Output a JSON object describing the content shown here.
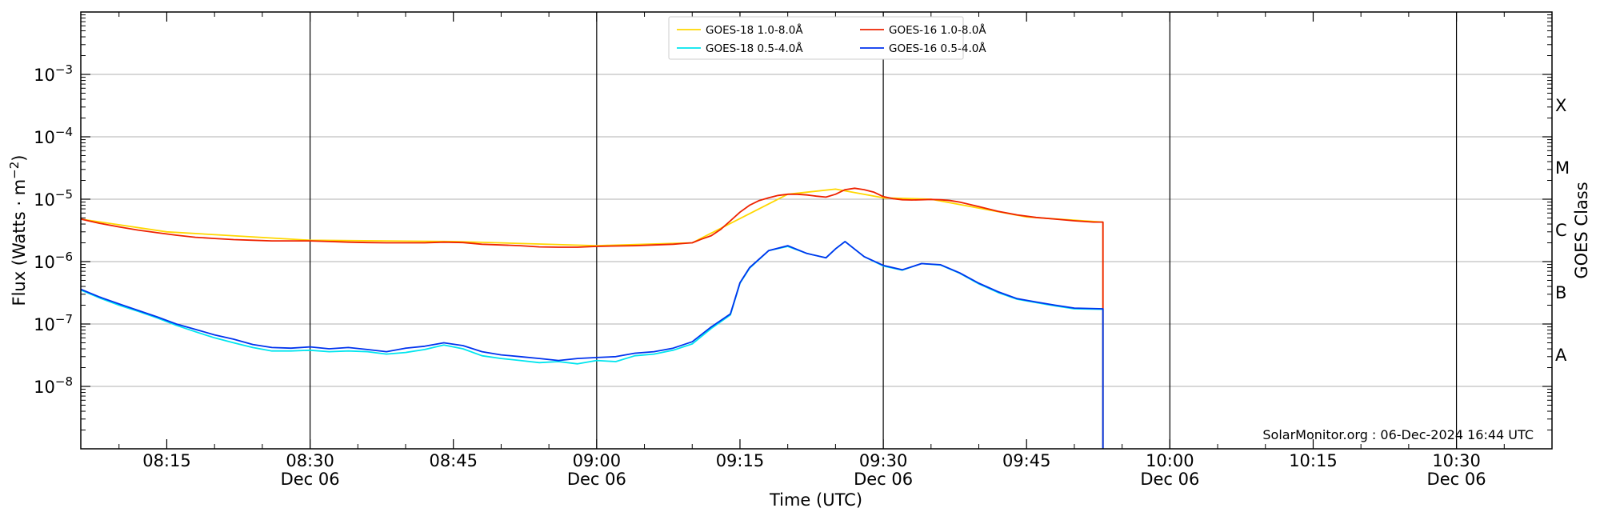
{
  "chart_data": {
    "type": "line",
    "xlabel": "Time (UTC)",
    "ylabel_text": "Flux (Watts · m",
    "ylabel_sup": "−2",
    "ylabel_close": ")",
    "right_label": "GOES Class",
    "credit": "SolarMonitor.org : 06-Dec-2024 16:44 UTC",
    "y_scale": "log",
    "ylim": [
      1e-09,
      0.01
    ],
    "xlim": [
      "08:06",
      "10:40"
    ],
    "grid": "horizontal at y decades",
    "legend_placement": "top-center",
    "y_ticks": [
      {
        "value": 1e-08,
        "base": "10",
        "exp": "−8"
      },
      {
        "value": 1e-07,
        "base": "10",
        "exp": "−7"
      },
      {
        "value": 1e-06,
        "base": "10",
        "exp": "−6"
      },
      {
        "value": 1e-05,
        "base": "10",
        "exp": "−5"
      },
      {
        "value": 0.0001,
        "base": "10",
        "exp": "−4"
      },
      {
        "value": 0.001,
        "base": "10",
        "exp": "−3"
      }
    ],
    "x_ticks": [
      {
        "time": "08:15",
        "label": "08:15",
        "sub": ""
      },
      {
        "time": "08:30",
        "label": "08:30",
        "sub": "Dec 06"
      },
      {
        "time": "08:45",
        "label": "08:45",
        "sub": ""
      },
      {
        "time": "09:00",
        "label": "09:00",
        "sub": "Dec 06"
      },
      {
        "time": "09:15",
        "label": "09:15",
        "sub": ""
      },
      {
        "time": "09:30",
        "label": "09:30",
        "sub": "Dec 06"
      },
      {
        "time": "09:45",
        "label": "09:45",
        "sub": ""
      },
      {
        "time": "10:00",
        "label": "10:00",
        "sub": "Dec 06"
      },
      {
        "time": "10:15",
        "label": "10:15",
        "sub": ""
      },
      {
        "time": "10:30",
        "label": "10:30",
        "sub": "Dec 06"
      }
    ],
    "vertical_markers": [
      "08:30",
      "09:00",
      "09:30",
      "10:00",
      "10:30"
    ],
    "goes_classes": [
      {
        "label": "A",
        "value": 1e-08
      },
      {
        "label": "B",
        "value": 1e-07
      },
      {
        "label": "C",
        "value": 1e-06
      },
      {
        "label": "M",
        "value": 1e-05
      },
      {
        "label": "X",
        "value": 0.0001
      }
    ],
    "series": [
      {
        "name": "GOES-18 1.0-8.0Å",
        "color": "#ffd700",
        "x": [
          "08:06",
          "08:15",
          "08:30",
          "08:45",
          "09:00",
          "09:10",
          "09:20",
          "09:25",
          "09:30",
          "09:35",
          "09:45",
          "09:53"
        ],
        "values": [
          4.8e-06,
          3e-06,
          2.2e-06,
          2.1e-06,
          1.8e-06,
          2e-06,
          1.2e-05,
          1.45e-05,
          1.05e-05,
          1e-05,
          5.2e-06,
          4.3e-06
        ]
      },
      {
        "name": "GOES-18 0.5-4.0Å",
        "color": "#00e5ee",
        "x": [
          "08:06",
          "08:08",
          "08:10",
          "08:12",
          "08:14",
          "08:16",
          "08:18",
          "08:20",
          "08:22",
          "08:24",
          "08:26",
          "08:28",
          "08:30",
          "08:32",
          "08:34",
          "08:36",
          "08:38",
          "08:40",
          "08:42",
          "08:44",
          "08:46",
          "08:48",
          "08:50",
          "08:52",
          "08:54",
          "08:56",
          "08:58",
          "09:00",
          "09:02",
          "09:04",
          "09:06",
          "09:08",
          "09:10",
          "09:12",
          "09:14",
          "09:15",
          "09:16",
          "09:18",
          "09:20",
          "09:22",
          "09:24",
          "09:25",
          "09:26",
          "09:28",
          "09:30",
          "09:32",
          "09:34",
          "09:36",
          "09:38",
          "09:40",
          "09:42",
          "09:44",
          "09:46",
          "09:48",
          "09:50",
          "09:53"
        ],
        "values": [
          3.5e-07,
          2.6e-07,
          2e-07,
          1.6e-07,
          1.25e-07,
          9.5e-08,
          7.5e-08,
          6e-08,
          5e-08,
          4.2e-08,
          3.7e-08,
          3.7e-08,
          3.8e-08,
          3.6e-08,
          3.7e-08,
          3.6e-08,
          3.3e-08,
          3.5e-08,
          3.9e-08,
          4.6e-08,
          4e-08,
          3.1e-08,
          2.8e-08,
          2.6e-08,
          2.4e-08,
          2.5e-08,
          2.3e-08,
          2.6e-08,
          2.5e-08,
          3.1e-08,
          3.3e-08,
          3.8e-08,
          4.8e-08,
          8.5e-08,
          1.4e-07,
          4.5e-07,
          7.8e-07,
          1.5e-06,
          1.75e-06,
          1.35e-06,
          1.15e-06,
          1.6e-06,
          2.1e-06,
          1.2e-06,
          8.5e-07,
          7.3e-07,
          9.3e-07,
          8.8e-07,
          6.5e-07,
          4.4e-07,
          3.2e-07,
          2.5e-07,
          2.2e-07,
          1.95e-07,
          1.75e-07,
          1.72e-07
        ]
      },
      {
        "name": "GOES-16 1.0-8.0Å",
        "color": "#ee2200",
        "x": [
          "08:06",
          "08:08",
          "08:10",
          "08:12",
          "08:14",
          "08:16",
          "08:18",
          "08:20",
          "08:22",
          "08:24",
          "08:26",
          "08:28",
          "08:30",
          "08:32",
          "08:34",
          "08:36",
          "08:38",
          "08:40",
          "08:42",
          "08:44",
          "08:46",
          "08:48",
          "08:50",
          "08:52",
          "08:54",
          "08:56",
          "08:58",
          "09:00",
          "09:02",
          "09:04",
          "09:06",
          "09:08",
          "09:09",
          "09:10",
          "09:11",
          "09:12",
          "09:13",
          "09:14",
          "09:15",
          "09:16",
          "09:17",
          "09:18",
          "09:19",
          "09:20",
          "09:21",
          "09:22",
          "09:23",
          "09:24",
          "09:25",
          "09:26",
          "09:27",
          "09:28",
          "09:29",
          "09:30",
          "09:31",
          "09:32",
          "09:33",
          "09:34",
          "09:35",
          "09:36",
          "09:37",
          "09:38",
          "09:40",
          "09:42",
          "09:44",
          "09:46",
          "09:48",
          "09:50",
          "09:52",
          "09:53"
        ],
        "values": [
          4.8e-06,
          4.1e-06,
          3.6e-06,
          3.2e-06,
          2.9e-06,
          2.65e-06,
          2.45e-06,
          2.35e-06,
          2.25e-06,
          2.2e-06,
          2.15e-06,
          2.15e-06,
          2.15e-06,
          2.1e-06,
          2.05e-06,
          2.02e-06,
          2e-06,
          2e-06,
          2e-06,
          2.05e-06,
          2.02e-06,
          1.9e-06,
          1.85e-06,
          1.8e-06,
          1.72e-06,
          1.7e-06,
          1.7e-06,
          1.75e-06,
          1.78e-06,
          1.8e-06,
          1.85e-06,
          1.9e-06,
          1.95e-06,
          2e-06,
          2.3e-06,
          2.6e-06,
          3.3e-06,
          4.5e-06,
          6.2e-06,
          8e-06,
          9.5e-06,
          1.05e-05,
          1.15e-05,
          1.2e-05,
          1.2e-05,
          1.17e-05,
          1.12e-05,
          1.08e-05,
          1.2e-05,
          1.42e-05,
          1.5e-05,
          1.42e-05,
          1.3e-05,
          1.1e-05,
          1.02e-05,
          9.8e-06,
          9.7e-06,
          9.8e-06,
          9.9e-06,
          9.8e-06,
          9.5e-06,
          9e-06,
          7.6e-06,
          6.4e-06,
          5.6e-06,
          5.1e-06,
          4.8e-06,
          4.5e-06,
          4.3e-06,
          4.3e-06
        ]
      },
      {
        "name": "GOES-16 0.5-4.0Å",
        "color": "#0033ee",
        "x": [
          "08:06",
          "08:08",
          "08:10",
          "08:12",
          "08:14",
          "08:16",
          "08:18",
          "08:20",
          "08:22",
          "08:24",
          "08:26",
          "08:28",
          "08:30",
          "08:32",
          "08:34",
          "08:36",
          "08:38",
          "08:40",
          "08:42",
          "08:44",
          "08:46",
          "08:48",
          "08:50",
          "08:52",
          "08:54",
          "08:56",
          "08:58",
          "09:00",
          "09:02",
          "09:04",
          "09:06",
          "09:08",
          "09:10",
          "09:12",
          "09:14",
          "09:15",
          "09:16",
          "09:18",
          "09:20",
          "09:22",
          "09:24",
          "09:25",
          "09:26",
          "09:28",
          "09:30",
          "09:32",
          "09:34",
          "09:36",
          "09:38",
          "09:40",
          "09:42",
          "09:44",
          "09:46",
          "09:48",
          "09:50",
          "09:53"
        ],
        "values": [
          3.6e-07,
          2.7e-07,
          2.1e-07,
          1.65e-07,
          1.3e-07,
          1e-07,
          8.2e-08,
          6.7e-08,
          5.7e-08,
          4.7e-08,
          4.2e-08,
          4.1e-08,
          4.3e-08,
          4e-08,
          4.2e-08,
          3.9e-08,
          3.6e-08,
          4.1e-08,
          4.4e-08,
          5e-08,
          4.5e-08,
          3.6e-08,
          3.2e-08,
          3e-08,
          2.8e-08,
          2.6e-08,
          2.8e-08,
          2.9e-08,
          3e-08,
          3.4e-08,
          3.6e-08,
          4.1e-08,
          5.2e-08,
          9e-08,
          1.45e-07,
          4.6e-07,
          8e-07,
          1.5e-06,
          1.8e-06,
          1.35e-06,
          1.15e-06,
          1.6e-06,
          2.1e-06,
          1.2e-06,
          8.7e-07,
          7.4e-07,
          9.3e-07,
          8.9e-07,
          6.6e-07,
          4.5e-07,
          3.3e-07,
          2.55e-07,
          2.25e-07,
          2e-07,
          1.8e-07,
          1.75e-07
        ]
      }
    ]
  }
}
